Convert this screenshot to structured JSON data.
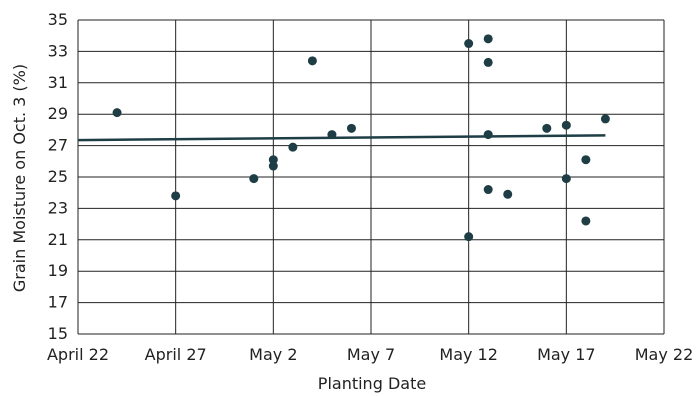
{
  "chart_data": {
    "type": "scatter",
    "title": "",
    "xlabel": "Planting Date",
    "ylabel": "Grain Moisture on Oct. 3 (%)",
    "x_type": "date",
    "xlim": [
      "2023-04-22",
      "2023-05-22"
    ],
    "ylim": [
      15,
      35
    ],
    "x_ticks": [
      {
        "date": "2023-04-22",
        "label": "April 22"
      },
      {
        "date": "2023-04-27",
        "label": "April 27"
      },
      {
        "date": "2023-05-02",
        "label": "May 2"
      },
      {
        "date": "2023-05-07",
        "label": "May 7"
      },
      {
        "date": "2023-05-12",
        "label": "May 12"
      },
      {
        "date": "2023-05-17",
        "label": "May 17"
      },
      {
        "date": "2023-05-22",
        "label": "May 22"
      }
    ],
    "y_ticks": [
      15,
      17,
      19,
      21,
      23,
      25,
      27,
      29,
      31,
      33,
      35
    ],
    "grid": true,
    "colors": {
      "points": "#1e3d45",
      "trendline": "#1e3d45",
      "grid": "#222222"
    },
    "points": [
      {
        "x": "2023-04-24",
        "y": 29.1
      },
      {
        "x": "2023-04-27",
        "y": 23.8
      },
      {
        "x": "2023-05-01",
        "y": 24.9
      },
      {
        "x": "2023-05-02",
        "y": 26.1
      },
      {
        "x": "2023-05-02",
        "y": 25.7
      },
      {
        "x": "2023-05-03",
        "y": 26.9
      },
      {
        "x": "2023-05-04",
        "y": 32.4
      },
      {
        "x": "2023-05-05",
        "y": 27.7
      },
      {
        "x": "2023-05-06",
        "y": 28.1
      },
      {
        "x": "2023-05-12",
        "y": 33.5
      },
      {
        "x": "2023-05-12",
        "y": 21.2
      },
      {
        "x": "2023-05-13",
        "y": 33.8
      },
      {
        "x": "2023-05-13",
        "y": 32.3
      },
      {
        "x": "2023-05-13",
        "y": 27.7
      },
      {
        "x": "2023-05-13",
        "y": 24.2
      },
      {
        "x": "2023-05-14",
        "y": 23.9
      },
      {
        "x": "2023-05-16",
        "y": 28.1
      },
      {
        "x": "2023-05-17",
        "y": 28.3
      },
      {
        "x": "2023-05-17",
        "y": 24.9
      },
      {
        "x": "2023-05-18",
        "y": 26.1
      },
      {
        "x": "2023-05-18",
        "y": 22.2
      },
      {
        "x": "2023-05-19",
        "y": 28.7
      }
    ],
    "trendline": {
      "x": [
        "2023-04-22",
        "2023-05-19"
      ],
      "y": [
        27.35,
        27.65
      ]
    }
  }
}
